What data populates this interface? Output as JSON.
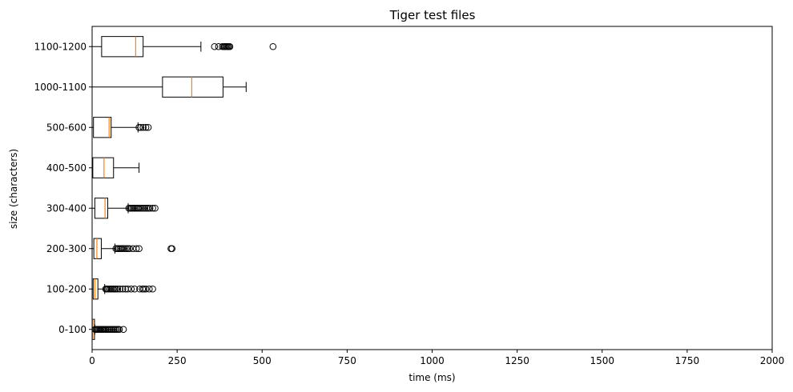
{
  "chart_data": {
    "type": "boxplot",
    "orientation": "horizontal",
    "title": "Tiger test files",
    "xlabel": "time (ms)",
    "ylabel": "size (characters)",
    "xlim": [
      0,
      2000
    ],
    "xticks": [
      0,
      250,
      500,
      750,
      1000,
      1250,
      1500,
      1750,
      2000
    ],
    "grid": false,
    "colors": {
      "box": "#000000",
      "median": "#ff7f0e",
      "flier": "#000000"
    },
    "categories": [
      "0-100",
      "100-200",
      "200-300",
      "300-400",
      "400-500",
      "500-600",
      "1000-1100",
      "1100-1200"
    ],
    "boxes": [
      {
        "category": "0-100",
        "whislo": 0,
        "q1": 1,
        "med": 2,
        "q3": 7,
        "whishi": 8,
        "fliers": [
          9,
          12,
          15,
          18,
          21,
          24,
          27,
          30,
          33,
          36,
          40,
          44,
          48,
          52,
          56,
          60,
          64,
          68,
          72,
          76,
          80,
          92
        ]
      },
      {
        "category": "100-200",
        "whislo": 0,
        "q1": 3,
        "med": 8,
        "q3": 17,
        "whishi": 37,
        "fliers": [
          40,
          43,
          46,
          50,
          54,
          58,
          62,
          66,
          70,
          75,
          82,
          90,
          98,
          105,
          115,
          125,
          140,
          148,
          152,
          158,
          168,
          178
        ]
      },
      {
        "category": "200-300",
        "whislo": 0,
        "q1": 5,
        "med": 14,
        "q3": 27,
        "whishi": 67,
        "fliers": [
          70,
          74,
          78,
          82,
          86,
          90,
          95,
          100,
          105,
          110,
          120,
          130,
          138,
          232,
          235
        ]
      },
      {
        "category": "300-400",
        "whislo": 0,
        "q1": 8,
        "med": 38,
        "q3": 46,
        "whishi": 106,
        "fliers": [
          108,
          112,
          116,
          120,
          124,
          128,
          132,
          136,
          140,
          145,
          150,
          155,
          160,
          165,
          170,
          178,
          185
        ]
      },
      {
        "category": "400-500",
        "whislo": 0,
        "q1": 2,
        "med": 35,
        "q3": 63,
        "whishi": 138,
        "fliers": []
      },
      {
        "category": "500-600",
        "whislo": 0,
        "q1": 4,
        "med": 50,
        "q3": 56,
        "whishi": 135,
        "fliers": [
          138,
          143,
          150,
          158,
          165
        ]
      },
      {
        "category": "1000-1100",
        "whislo": 0,
        "q1": 207,
        "med": 293,
        "q3": 385,
        "whishi": 453,
        "fliers": []
      },
      {
        "category": "1100-1200",
        "whislo": 0,
        "q1": 28,
        "med": 128,
        "q3": 150,
        "whishi": 320,
        "fliers": [
          360,
          372,
          383,
          387,
          390,
          393,
          396,
          399,
          402,
          405,
          532
        ]
      }
    ]
  }
}
